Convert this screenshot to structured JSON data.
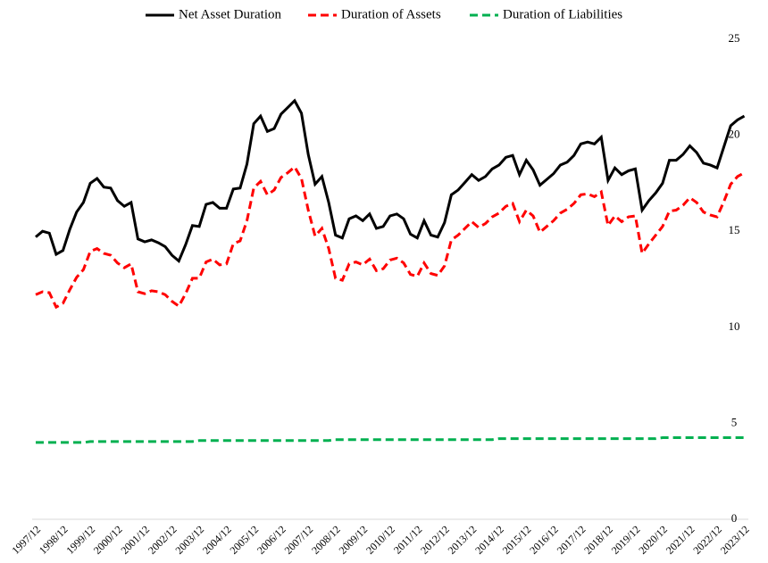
{
  "chart_data": {
    "type": "line",
    "categories": [
      "1997/12",
      null,
      null,
      null,
      "1998/12",
      null,
      null,
      null,
      "1999/12",
      null,
      null,
      null,
      "2000/12",
      null,
      null,
      null,
      "2001/12",
      null,
      null,
      null,
      "2002/12",
      null,
      null,
      null,
      "2003/12",
      null,
      null,
      null,
      "2004/12",
      null,
      null,
      null,
      "2005/12",
      null,
      null,
      null,
      "2006/12",
      null,
      null,
      null,
      "2007/12",
      null,
      null,
      null,
      "2008/12",
      null,
      null,
      null,
      "2009/12",
      null,
      null,
      null,
      "2010/12",
      null,
      null,
      null,
      "2011/12",
      null,
      null,
      null,
      "2012/12",
      null,
      null,
      null,
      "2013/12",
      null,
      null,
      null,
      "2014/12",
      null,
      null,
      null,
      "2015/12",
      null,
      null,
      null,
      "2016/12",
      null,
      null,
      null,
      "2017/12",
      null,
      null,
      null,
      "2018/12",
      null,
      null,
      null,
      "2019/12",
      null,
      null,
      null,
      "2020/12",
      null,
      null,
      null,
      "2021/12",
      null,
      null,
      null,
      "2022/12",
      null,
      null,
      null,
      "2023/12"
    ],
    "series": [
      {
        "name": "Net Asset Duration",
        "color": "#000000",
        "line_style": "solid",
        "values": [
          14.7,
          15.0,
          14.9,
          13.8,
          14.0,
          15.1,
          16.0,
          16.5,
          17.5,
          17.75,
          17.3,
          17.25,
          16.6,
          16.3,
          16.5,
          14.6,
          14.45,
          14.55,
          14.4,
          14.2,
          13.75,
          13.45,
          14.3,
          15.3,
          15.25,
          16.4,
          16.5,
          16.2,
          16.2,
          17.2,
          17.25,
          18.5,
          20.6,
          21.0,
          20.2,
          20.35,
          21.1,
          21.45,
          21.8,
          21.15,
          19.0,
          17.45,
          17.85,
          16.5,
          14.8,
          14.65,
          15.65,
          15.8,
          15.55,
          15.9,
          15.15,
          15.25,
          15.8,
          15.9,
          15.65,
          14.85,
          14.65,
          15.55,
          14.8,
          14.7,
          15.45,
          16.9,
          17.15,
          17.55,
          17.95,
          17.65,
          17.85,
          18.25,
          18.45,
          18.85,
          18.95,
          17.95,
          18.7,
          18.2,
          17.4,
          17.7,
          18.0,
          18.45,
          18.6,
          18.95,
          19.55,
          19.65,
          19.55,
          19.9,
          17.65,
          18.3,
          17.95,
          18.15,
          18.25,
          16.1,
          16.6,
          17.0,
          17.5,
          18.7,
          18.7,
          19.0,
          19.45,
          19.1,
          18.55,
          18.45,
          18.3,
          19.4,
          20.5,
          20.8,
          21.0
        ]
      },
      {
        "name": "Duration of Assets",
        "color": "#ff0000",
        "line_style": "dashed",
        "values": [
          11.7,
          11.85,
          11.8,
          11.05,
          11.25,
          11.95,
          12.6,
          13.0,
          13.95,
          14.1,
          13.85,
          13.75,
          13.35,
          13.1,
          13.3,
          11.85,
          11.75,
          11.9,
          11.85,
          11.7,
          11.35,
          11.1,
          11.75,
          12.55,
          12.55,
          13.4,
          13.55,
          13.25,
          13.3,
          14.35,
          14.5,
          15.55,
          17.25,
          17.6,
          16.9,
          17.15,
          17.8,
          18.05,
          18.35,
          17.75,
          16.1,
          14.75,
          15.15,
          14.1,
          12.55,
          12.45,
          13.3,
          13.4,
          13.25,
          13.55,
          12.95,
          13.05,
          13.5,
          13.6,
          13.35,
          12.75,
          12.65,
          13.35,
          12.8,
          12.7,
          13.2,
          14.55,
          14.8,
          15.15,
          15.5,
          15.2,
          15.4,
          15.75,
          15.95,
          16.3,
          16.45,
          15.5,
          16.1,
          15.8,
          14.95,
          15.25,
          15.55,
          15.95,
          16.15,
          16.45,
          16.9,
          16.95,
          16.8,
          17.05,
          15.3,
          15.8,
          15.5,
          15.75,
          15.8,
          13.85,
          14.35,
          14.8,
          15.25,
          16.05,
          16.1,
          16.35,
          16.75,
          16.5,
          16.0,
          15.85,
          15.75,
          16.55,
          17.45,
          17.85,
          18.05
        ]
      },
      {
        "name": "Duration of Liabilities",
        "color": "#00b050",
        "line_style": "dashed",
        "values": [
          4.0,
          4.0,
          4.0,
          4.0,
          4.0,
          4.0,
          4.0,
          4.0,
          4.05,
          4.05,
          4.05,
          4.05,
          4.05,
          4.05,
          4.05,
          4.05,
          4.05,
          4.05,
          4.05,
          4.05,
          4.05,
          4.05,
          4.05,
          4.05,
          4.1,
          4.1,
          4.1,
          4.1,
          4.1,
          4.1,
          4.1,
          4.1,
          4.1,
          4.1,
          4.1,
          4.1,
          4.1,
          4.1,
          4.1,
          4.1,
          4.1,
          4.1,
          4.1,
          4.1,
          4.15,
          4.15,
          4.15,
          4.15,
          4.15,
          4.15,
          4.15,
          4.15,
          4.15,
          4.15,
          4.15,
          4.15,
          4.15,
          4.15,
          4.15,
          4.15,
          4.15,
          4.15,
          4.15,
          4.15,
          4.15,
          4.15,
          4.15,
          4.15,
          4.2,
          4.2,
          4.2,
          4.2,
          4.2,
          4.2,
          4.2,
          4.2,
          4.2,
          4.2,
          4.2,
          4.2,
          4.2,
          4.2,
          4.2,
          4.2,
          4.2,
          4.2,
          4.2,
          4.2,
          4.2,
          4.2,
          4.2,
          4.2,
          4.25,
          4.25,
          4.25,
          4.25,
          4.25,
          4.25,
          4.25,
          4.25,
          4.25,
          4.25,
          4.25,
          4.25,
          4.25
        ]
      }
    ],
    "ylim": [
      0,
      25
    ],
    "yticks": [
      0,
      5,
      10,
      15,
      20,
      25
    ],
    "grid": false,
    "y_axis_side": "right",
    "legend": "top"
  }
}
